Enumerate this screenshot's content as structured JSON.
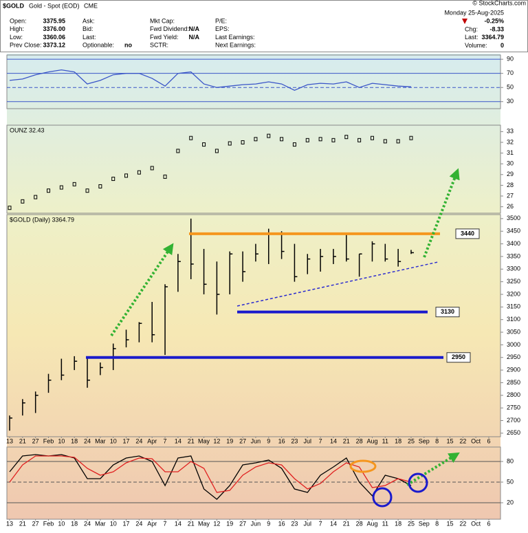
{
  "header": {
    "symbol": "$GOLD",
    "name": "Gold - Spot (EOD)",
    "exchange": "CME",
    "copyright": "© StockCharts.com",
    "date": "Monday  25-Aug-2025",
    "change_pct": "-0.25%",
    "columns": [
      [
        {
          "label": "Open:",
          "value": "3375.95"
        },
        {
          "label": "High:",
          "value": "3376.00"
        },
        {
          "label": "Low:",
          "value": "3360.06"
        },
        {
          "label": "Prev Close:",
          "value": "3373.12"
        }
      ],
      [
        {
          "label": "Ask:"
        },
        {
          "label": "Bid:"
        },
        {
          "label": "Last:"
        },
        {
          "label": "Optionable:",
          "value": "no"
        }
      ],
      [
        {
          "label": "Mkt Cap:"
        },
        {
          "label": "Fwd Dividend:",
          "value": "N/A"
        },
        {
          "label": "Fwd Yield:",
          "value": "N/A"
        },
        {
          "label": "SCTR:"
        }
      ],
      [
        {
          "label": "P/E:"
        },
        {
          "label": "EPS:"
        },
        {
          "label": "Last Earnings:"
        },
        {
          "label": "Next Earnings:"
        }
      ]
    ],
    "right": [
      {
        "label": "Chg:",
        "value": "-8.33"
      },
      {
        "label": "Last:",
        "value": "3364.79"
      },
      {
        "label": "Volume:",
        "value": "0"
      }
    ]
  },
  "chart_data": [
    {
      "type": "line",
      "color": "#3a55c8",
      "grid": true,
      "grid_color": "#3a55c8",
      "values": [
        60,
        62,
        68,
        72,
        75,
        72,
        55,
        60,
        68,
        70,
        70,
        63,
        52,
        70,
        72,
        55,
        50,
        52,
        54,
        55,
        58,
        55,
        46,
        54,
        56,
        55,
        58,
        50,
        56,
        54,
        52,
        51
      ],
      "ylim": [
        20,
        96
      ],
      "yticks": [
        30,
        50,
        70,
        90
      ]
    },
    {
      "type": "point",
      "title": "OUNZ 32.43",
      "color": "#000000",
      "grid": false,
      "values": [
        25.9,
        26.5,
        26.9,
        27.5,
        27.8,
        28.1,
        27.5,
        27.9,
        28.6,
        28.9,
        29.2,
        29.6,
        28.8,
        31.2,
        32.4,
        31.8,
        31.2,
        31.9,
        32.0,
        32.3,
        32.6,
        32.3,
        31.8,
        32.2,
        32.3,
        32.2,
        32.5,
        32.2,
        32.4,
        32.1,
        32.1,
        32.4
      ],
      "ylim": [
        25.4,
        33.6
      ],
      "yticks": [
        26,
        27,
        28,
        29,
        30,
        31,
        32,
        33
      ]
    },
    {
      "type": "ohlc",
      "title": "$GOLD (Daily) 3364.79",
      "color": "#000000",
      "grid": false,
      "categories": [
        "13",
        "21",
        "27",
        "Feb",
        "10",
        "18",
        "24",
        "Mar",
        "10",
        "17",
        "24",
        "Apr",
        "7",
        "14",
        "21",
        "May",
        "12",
        "19",
        "27",
        "Jun",
        "9",
        "16",
        "23",
        "Jul",
        "7",
        "14",
        "21",
        "28",
        "Aug",
        "11",
        "18",
        "25",
        "Sep",
        "8",
        "15",
        "22",
        "Oct",
        "6"
      ],
      "high": [
        2720,
        2785,
        2815,
        2885,
        2945,
        2955,
        2950,
        2930,
        3005,
        3060,
        3090,
        3170,
        3240,
        3360,
        3500,
        3380,
        3330,
        3370,
        3370,
        3400,
        3460,
        3450,
        3400,
        3360,
        3380,
        3380,
        3440,
        3360,
        3410,
        3400,
        3380,
        3376,
        null,
        null,
        null,
        null,
        null,
        null
      ],
      "low": [
        2660,
        2720,
        2730,
        2810,
        2860,
        2900,
        2830,
        2880,
        2900,
        2990,
        3010,
        3010,
        2960,
        3210,
        3260,
        3200,
        3120,
        3200,
        3250,
        3330,
        3320,
        3340,
        3250,
        3280,
        3290,
        3320,
        3330,
        3270,
        3330,
        3330,
        3310,
        3360,
        null,
        null,
        null,
        null,
        null,
        null
      ],
      "close": [
        2710,
        2770,
        2800,
        2860,
        2880,
        2935,
        2860,
        2910,
        2985,
        3020,
        3085,
        3040,
        3230,
        3330,
        3320,
        3240,
        3200,
        3360,
        3290,
        3360,
        3440,
        3370,
        3270,
        3340,
        3350,
        3350,
        3340,
        3360,
        3400,
        3340,
        3330,
        3365,
        null,
        null,
        null,
        null,
        null,
        null
      ],
      "ylim": [
        2636,
        3516
      ],
      "yticks": [
        2650,
        2700,
        2750,
        2800,
        2850,
        2900,
        2950,
        3000,
        3050,
        3100,
        3150,
        3200,
        3250,
        3300,
        3350,
        3400,
        3450,
        3500
      ],
      "annotations": [
        {
          "label": "3440",
          "value": 3440,
          "color": "#f5961e"
        },
        {
          "label": "3130",
          "value": 3130,
          "color": "#1a1acc"
        },
        {
          "label": "2950",
          "value": 2950,
          "color": "#1a1acc"
        }
      ]
    },
    {
      "type": "line",
      "grid": true,
      "grid_color": "#555555",
      "categories": [
        "13",
        "21",
        "27",
        "Feb",
        "10",
        "18",
        "24",
        "Mar",
        "10",
        "17",
        "24",
        "Apr",
        "7",
        "14",
        "21",
        "May",
        "12",
        "19",
        "27",
        "Jun",
        "9",
        "16",
        "23",
        "Jul",
        "7",
        "14",
        "21",
        "28",
        "Aug",
        "11",
        "18",
        "25",
        "Sep",
        "8",
        "15",
        "22",
        "Oct",
        "6"
      ],
      "series": [
        {
          "color": "#000000",
          "values": [
            65,
            88,
            90,
            88,
            90,
            85,
            55,
            55,
            75,
            85,
            88,
            80,
            45,
            85,
            88,
            40,
            25,
            45,
            75,
            78,
            82,
            70,
            40,
            35,
            60,
            72,
            85,
            50,
            30,
            60,
            55,
            45,
            null,
            null,
            null,
            null,
            null,
            null
          ]
        },
        {
          "color": "#e02020",
          "values": [
            50,
            75,
            88,
            88,
            88,
            86,
            70,
            60,
            65,
            78,
            85,
            84,
            65,
            65,
            80,
            70,
            35,
            38,
            60,
            72,
            78,
            75,
            55,
            40,
            48,
            65,
            78,
            72,
            42,
            45,
            55,
            50,
            null,
            null,
            null,
            null,
            null,
            null
          ]
        }
      ],
      "ylim": [
        -4,
        101
      ],
      "yticks": [
        20,
        50,
        80
      ]
    }
  ]
}
